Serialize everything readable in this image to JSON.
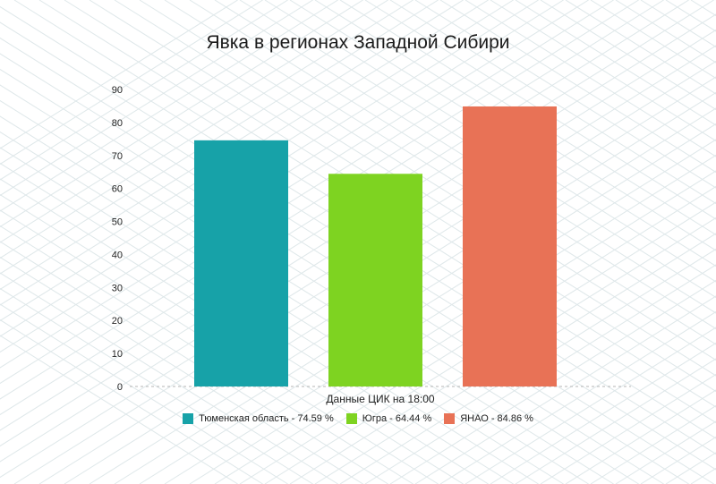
{
  "chart_data": {
    "type": "bar",
    "title": "Явка в регионах Западной Сибири",
    "xlabel": "Данные ЦИК на 18:00",
    "ylabel": "",
    "ylim": [
      0,
      90
    ],
    "yticks": [
      0,
      10,
      20,
      30,
      40,
      50,
      60,
      70,
      80,
      90
    ],
    "grid": false,
    "legend_position": "bottom",
    "series": [
      {
        "name": "Тюменская область - 74.59 %",
        "value": 74.59,
        "color": "#17a2a8"
      },
      {
        "name": "Югра - 64.44 %",
        "value": 64.44,
        "color": "#7ed321"
      },
      {
        "name": "ЯНАО - 84.86 %",
        "value": 84.86,
        "color": "#e87256"
      }
    ]
  }
}
